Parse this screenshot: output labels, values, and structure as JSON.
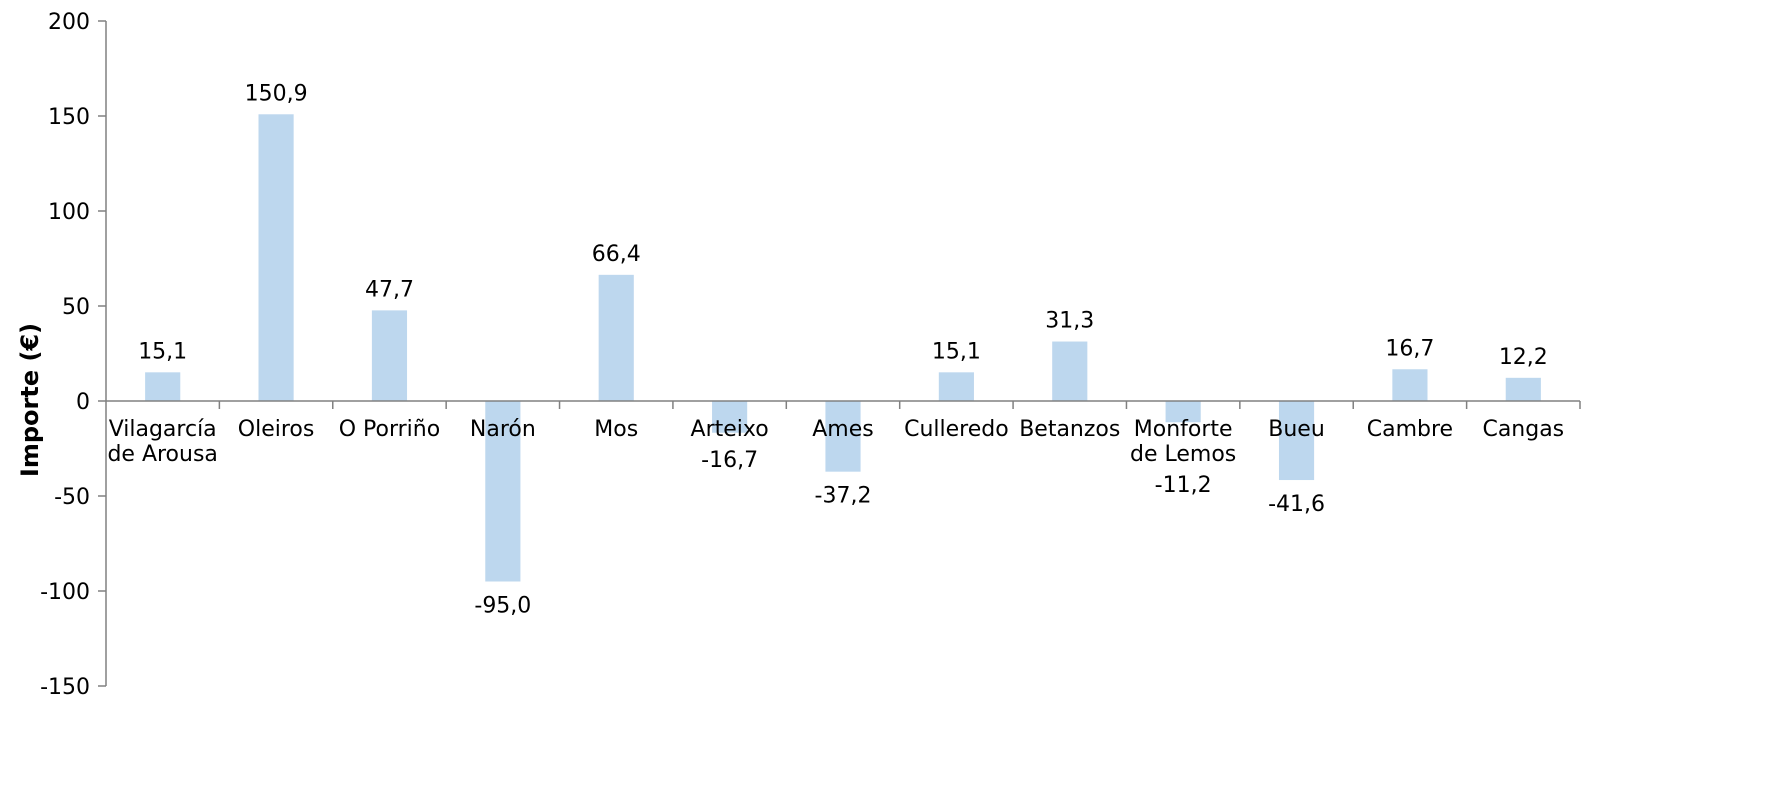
{
  "chart_data": {
    "type": "bar",
    "title": "",
    "xlabel": "",
    "ylabel": "Importe (€)",
    "ylim": [
      -150,
      200
    ],
    "yticks": [
      200,
      150,
      100,
      50,
      0,
      -50,
      -100,
      -150
    ],
    "grid": false,
    "bar_color": "#bdd7ee",
    "categories": [
      [
        "Vilagarcía",
        "de Arousa"
      ],
      [
        "Oleiros"
      ],
      [
        "O Porriño"
      ],
      [
        "Narón"
      ],
      [
        "Mos"
      ],
      [
        "Arteixo"
      ],
      [
        "Ames"
      ],
      [
        "Culleredo"
      ],
      [
        "Betanzos"
      ],
      [
        "Monforte",
        "de Lemos"
      ],
      [
        "Bueu"
      ],
      [
        "Cambre"
      ],
      [
        "Cangas"
      ]
    ],
    "values": [
      15.1,
      150.9,
      47.7,
      -95.0,
      66.4,
      -16.7,
      -37.2,
      15.1,
      31.3,
      -11.2,
      -41.6,
      16.7,
      12.2
    ],
    "value_labels": [
      "15,1",
      "150,9",
      "47,7",
      "-95,0",
      "66,4",
      "-16,7",
      "-37,2",
      "15,1",
      "31,3",
      "-11,2",
      "-41,6",
      "16,7",
      "12,2"
    ]
  }
}
